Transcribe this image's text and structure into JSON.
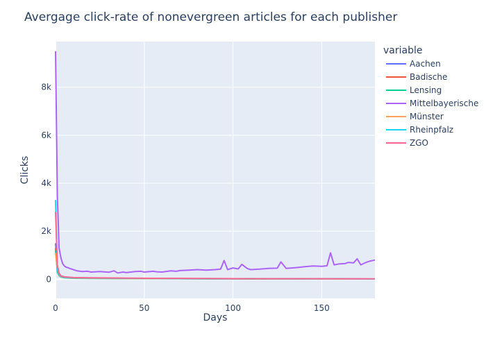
{
  "chart_data": {
    "type": "line",
    "title": "Avergage click-rate of nonevergreen articles for each publisher",
    "xlabel": "Days",
    "ylabel": "Clicks",
    "xlim": [
      0,
      180
    ],
    "ylim": [
      -800,
      9900
    ],
    "x_ticks": [
      0,
      50,
      100,
      150
    ],
    "y_ticks": [
      0,
      2000,
      4000,
      6000,
      8000
    ],
    "y_tick_labels": [
      "0",
      "2k",
      "4k",
      "6k",
      "8k"
    ],
    "grid": true,
    "legend_title": "variable",
    "legend_position": "right",
    "plot_background": "#e5ecf6",
    "series": [
      {
        "name": "Aachen",
        "color": "#636efa",
        "x": [
          0,
          1,
          2,
          3,
          5,
          10,
          20,
          40,
          60,
          80,
          100,
          120,
          140,
          160,
          180
        ],
        "y": [
          1500,
          500,
          200,
          100,
          70,
          50,
          40,
          30,
          25,
          20,
          20,
          15,
          15,
          15,
          10
        ]
      },
      {
        "name": "Badische",
        "color": "#ef553b",
        "x": [
          0,
          1,
          2,
          3,
          5,
          10,
          20,
          40,
          60,
          80,
          100,
          120,
          140,
          160,
          180
        ],
        "y": [
          1300,
          450,
          200,
          120,
          90,
          60,
          50,
          40,
          30,
          25,
          20,
          20,
          15,
          15,
          10
        ]
      },
      {
        "name": "Lensing",
        "color": "#00cc96",
        "x": [
          0,
          1,
          2,
          3,
          5,
          10,
          20,
          40,
          60,
          80,
          100,
          120,
          140,
          160,
          180
        ],
        "y": [
          1200,
          300,
          150,
          90,
          60,
          40,
          30,
          25,
          20,
          15,
          15,
          10,
          10,
          10,
          10
        ]
      },
      {
        "name": "Mittelbayerische",
        "color": "#ab63fa",
        "x": [
          0,
          1,
          2,
          3,
          4,
          5,
          6,
          7,
          8,
          10,
          12,
          15,
          18,
          20,
          25,
          30,
          33,
          35,
          38,
          40,
          45,
          48,
          50,
          55,
          57,
          60,
          65,
          68,
          70,
          75,
          80,
          85,
          90,
          93,
          95,
          97,
          100,
          103,
          105,
          108,
          110,
          115,
          120,
          125,
          127,
          130,
          135,
          138,
          140,
          145,
          150,
          153,
          155,
          157,
          160,
          163,
          165,
          168,
          170,
          172,
          175,
          177,
          180
        ],
        "y": [
          9500,
          3500,
          1300,
          900,
          650,
          550,
          500,
          480,
          450,
          400,
          350,
          320,
          330,
          300,
          320,
          290,
          350,
          260,
          300,
          280,
          320,
          330,
          300,
          330,
          310,
          300,
          350,
          330,
          360,
          380,
          400,
          380,
          400,
          420,
          780,
          400,
          470,
          430,
          620,
          450,
          400,
          420,
          450,
          460,
          720,
          450,
          480,
          500,
          520,
          550,
          540,
          560,
          1100,
          600,
          640,
          650,
          700,
          680,
          850,
          600,
          700,
          750,
          800
        ]
      },
      {
        "name": "Münster",
        "color": "#ffa15a",
        "x": [
          0,
          1,
          2,
          3,
          5,
          10,
          20,
          40,
          60,
          80,
          100,
          120,
          140,
          160,
          180
        ],
        "y": [
          1100,
          400,
          180,
          100,
          70,
          50,
          40,
          30,
          25,
          20,
          20,
          15,
          15,
          10,
          10
        ]
      },
      {
        "name": "Rheinpfalz",
        "color": "#19d3f3",
        "x": [
          0,
          1,
          2,
          3,
          5,
          10,
          20,
          40,
          60,
          80,
          100,
          120,
          140,
          160,
          180
        ],
        "y": [
          3300,
          400,
          200,
          120,
          80,
          60,
          50,
          40,
          30,
          25,
          20,
          20,
          15,
          15,
          10
        ]
      },
      {
        "name": "ZGO",
        "color": "#ff6692",
        "x": [
          0,
          1,
          2,
          3,
          5,
          10,
          20,
          40,
          60,
          80,
          100,
          120,
          140,
          160,
          180
        ],
        "y": [
          2800,
          600,
          250,
          140,
          100,
          70,
          60,
          45,
          35,
          30,
          25,
          20,
          20,
          15,
          15
        ]
      }
    ]
  }
}
